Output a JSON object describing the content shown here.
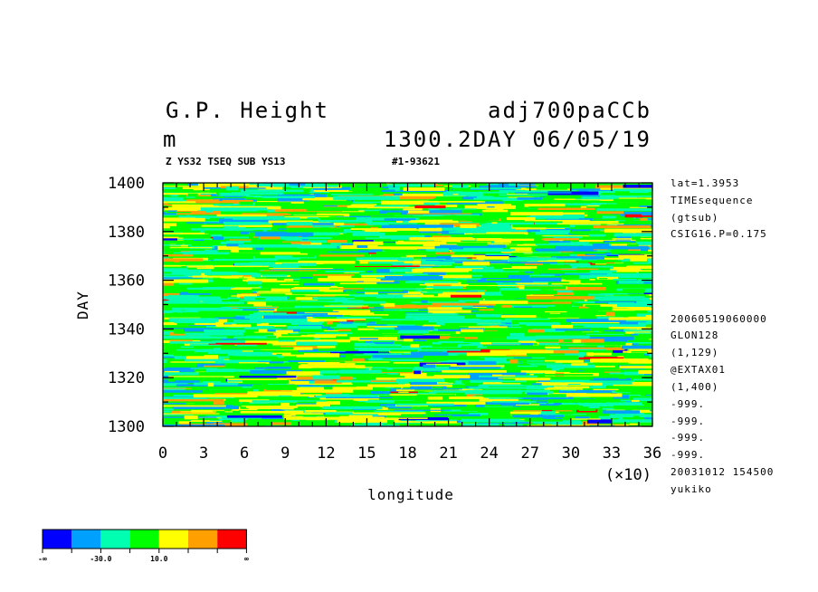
{
  "header": {
    "title_left": "G.P. Height",
    "title_right": "adj700paCCb",
    "unit": "m",
    "date_line": "1300.2DAY 06/05/19",
    "sub_left": "Z YS32 TSEQ SUB YS13",
    "sub_right": "#1-93621"
  },
  "info_top": [
    "lat=1.3953",
    "TIMEsequence",
    "(gtsub)",
    "CSIG16.P=0.175"
  ],
  "info_bottom": [
    "20060519060000",
    "GLON128",
    "(1,129)",
    "@EXTAX01",
    "(1,400)",
    "-999.",
    "-999.",
    "-999.",
    "-999.",
    "20031012 154500",
    "yukiko"
  ],
  "chart_data": {
    "type": "heatmap",
    "title": "G.P. Height",
    "xlabel": "longitude",
    "ylabel": "DAY",
    "x_multiplier": "(×10)",
    "xlim": [
      0,
      36
    ],
    "ylim": [
      1300,
      1400
    ],
    "x_ticks": [
      "0",
      "3",
      "6",
      "9",
      "12",
      "15",
      "18",
      "21",
      "24",
      "27",
      "30",
      "33",
      "36"
    ],
    "y_ticks": [
      "1300",
      "1320",
      "1340",
      "1360",
      "1380",
      "1400"
    ],
    "levels": [
      {
        "label": "-∞",
        "color": "#0000ff"
      },
      {
        "label": "",
        "color": "#00a0ff"
      },
      {
        "label": "-30.0",
        "color": "#00ffb0"
      },
      {
        "label": "",
        "color": "#00ff00"
      },
      {
        "label": "10.0",
        "color": "#ffff00"
      },
      {
        "label": "",
        "color": "#ffa000"
      },
      {
        "label": "",
        "color": "#ff0000"
      },
      {
        "label": "∞",
        "color": ""
      }
    ]
  }
}
